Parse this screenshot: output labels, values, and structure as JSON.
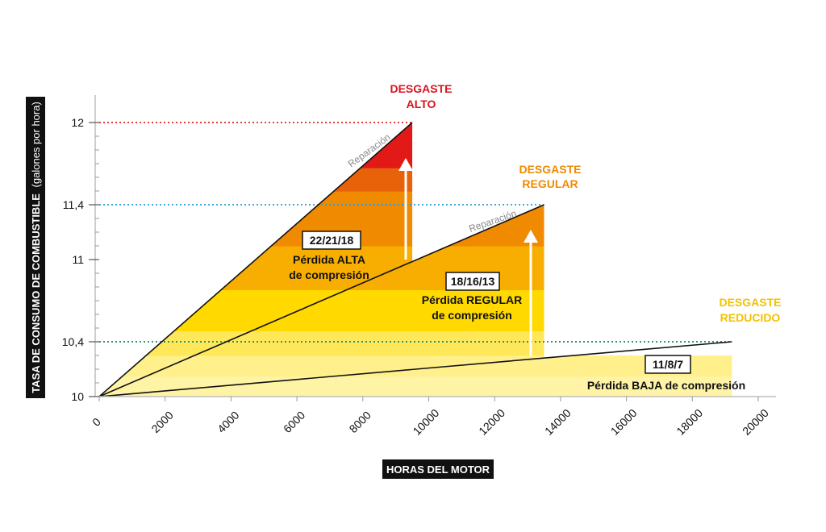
{
  "chart_data": {
    "type": "area",
    "xlabel": "HORAS DEL MOTOR",
    "ylabel": "TASA DE CONSUMO DE COMBUSTIBLE",
    "ylabel_unit": "(galones por hora)",
    "xlim": [
      0,
      20000
    ],
    "ylim": [
      10,
      12
    ],
    "x_ticks": [
      0,
      2000,
      4000,
      6000,
      8000,
      10000,
      12000,
      14000,
      16000,
      18000,
      20000
    ],
    "y_ticks": [
      {
        "value": 10,
        "label": "10"
      },
      {
        "value": 10.4,
        "label": "10,4"
      },
      {
        "value": 11,
        "label": "11"
      },
      {
        "value": 11.4,
        "label": "11,4"
      },
      {
        "value": 12,
        "label": "12"
      }
    ],
    "grid": false,
    "series": [
      {
        "name": "Pérdida ALTA de compresión",
        "code": "22/21/18",
        "zone": "DESGASTE ALTO",
        "zone_color": "#d7141e",
        "x": [
          0,
          9500
        ],
        "y": [
          10,
          12
        ],
        "threshold": 12
      },
      {
        "name": "Pérdida REGULAR de compresión",
        "code": "18/16/13",
        "zone": "DESGASTE REGULAR",
        "zone_color": "#ef8a00",
        "x": [
          0,
          13500
        ],
        "y": [
          10,
          11.4
        ],
        "threshold": 11.4
      },
      {
        "name": "Pérdida BAJA de compresión",
        "code": "11/8/7",
        "zone": "DESGASTE REDUCIDO",
        "zone_color": "#f2c200",
        "x": [
          0,
          19200
        ],
        "y": [
          10,
          10.4
        ],
        "threshold": 10.4
      }
    ],
    "repair_label": "Reparación",
    "band_colors": [
      "#fff3a6",
      "#fff08c",
      "#ffe75a",
      "#ffd900",
      "#f8ae00",
      "#f08a00",
      "#e8620a",
      "#e11a18"
    ],
    "threshold_line_colors": {
      "12": "#e02020",
      "11.4": "#2a9fd8",
      "10.4": "#0e8a6e"
    }
  },
  "annotations": {
    "high": {
      "zone_line1": "DESGASTE",
      "zone_line2": "ALTO",
      "code": "22/21/18",
      "line1": "Pérdida ALTA",
      "line2": "de compresión",
      "repair": "Reparación"
    },
    "medium": {
      "zone_line1": "DESGASTE",
      "zone_line2": "REGULAR",
      "code": "18/16/13",
      "line1": "Pérdida REGULAR",
      "line2": "de compresión",
      "repair": "Reparación"
    },
    "low": {
      "zone_line1": "DESGASTE",
      "zone_line2": "REDUCIDO",
      "code": "11/8/7",
      "line1": "Pérdida BAJA de compresión"
    }
  },
  "axis_titles": {
    "x": "HORAS DEL MOTOR",
    "y": "TASA DE CONSUMO DE COMBUSTIBLE",
    "y_unit": "(galones por hora)"
  }
}
